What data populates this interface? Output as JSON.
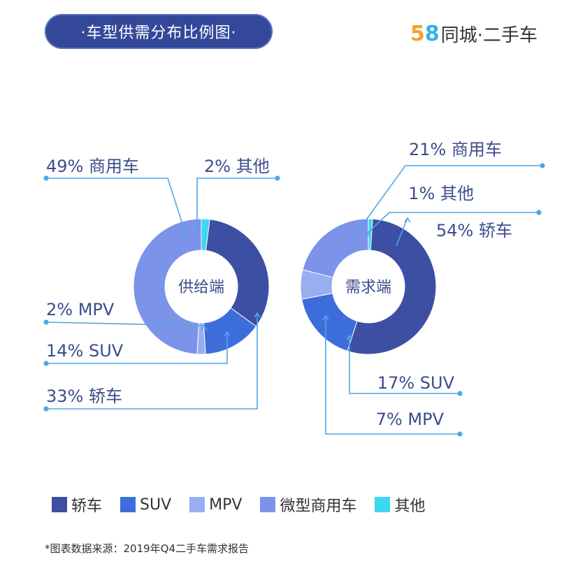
{
  "title": "·车型供需分布比例图·",
  "brand": {
    "num5": "5",
    "num8": "8",
    "text": "同城·二手车"
  },
  "source_note": "*图表数据来源：2019年Q4二手车需求报告",
  "colors": {
    "sedan": "#3d4fa3",
    "suv": "#3d6ddb",
    "mpv": "#98aef0",
    "commercial": "#7b93e8",
    "other": "#3ed6f0",
    "leader": "#4fa6e8",
    "label": "#3c4d8c"
  },
  "legend": [
    {
      "label": "轿车",
      "color": "#3d4fa3"
    },
    {
      "label": "SUV",
      "color": "#3d6ddb"
    },
    {
      "label": "MPV",
      "color": "#98aef0"
    },
    {
      "label": "微型商用车",
      "color": "#7b93e8"
    },
    {
      "label": "其他",
      "color": "#3ed6f0"
    }
  ],
  "chart_data": [
    {
      "type": "pie",
      "center_label": "供给端",
      "slices": [
        {
          "category": "其他",
          "value": 2,
          "label": "2% 其他",
          "color": "#3ed6f0"
        },
        {
          "category": "轿车",
          "value": 33,
          "label": "33% 轿车",
          "color": "#3d4fa3"
        },
        {
          "category": "SUV",
          "value": 14,
          "label": "14% SUV",
          "color": "#3d6ddb"
        },
        {
          "category": "MPV",
          "value": 2,
          "label": "2% MPV",
          "color": "#98aef0"
        },
        {
          "category": "微型商用车",
          "value": 49,
          "label": "49% 商用车",
          "color": "#7b93e8"
        }
      ]
    },
    {
      "type": "pie",
      "center_label": "需求端",
      "slices": [
        {
          "category": "其他",
          "value": 1,
          "label": "1% 其他",
          "color": "#3ed6f0"
        },
        {
          "category": "轿车",
          "value": 54,
          "label": "54% 轿车",
          "color": "#3d4fa3"
        },
        {
          "category": "SUV",
          "value": 17,
          "label": "17% SUV",
          "color": "#3d6ddb"
        },
        {
          "category": "MPV",
          "value": 7,
          "label": "7% MPV",
          "color": "#98aef0"
        },
        {
          "category": "微型商用车",
          "value": 21,
          "label": "21% 商用车",
          "color": "#7b93e8"
        }
      ]
    }
  ]
}
